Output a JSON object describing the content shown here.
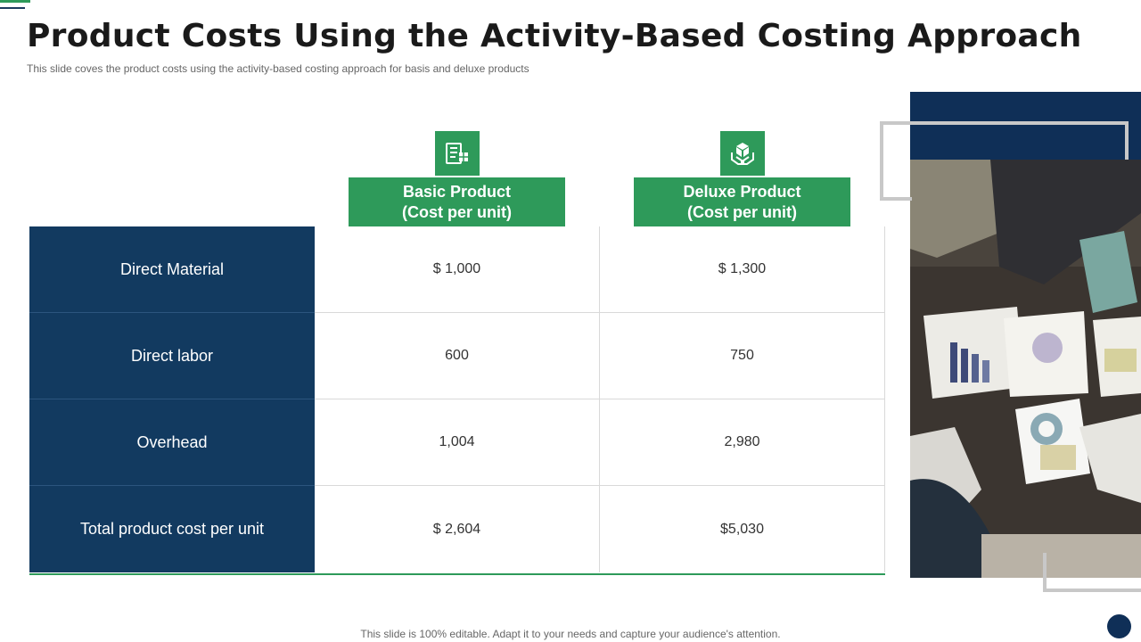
{
  "title": "Product Costs Using the Activity-Based Costing Approach",
  "subtitle": "This slide coves the product costs using the activity-based costing approach for basis and deluxe products",
  "columns": [
    {
      "line1": "Basic Product",
      "line2": "(Cost per unit)",
      "icon": "checklist-box-icon"
    },
    {
      "line1": "Deluxe Product",
      "line2": "(Cost per unit)",
      "icon": "hands-box-icon"
    }
  ],
  "rows": [
    {
      "label": "Direct Material",
      "basic": "$ 1,000",
      "deluxe": "$ 1,300"
    },
    {
      "label": "Direct labor",
      "basic": "600",
      "deluxe": "750"
    },
    {
      "label": "Overhead",
      "basic": "1,004",
      "deluxe": "2,980"
    },
    {
      "label": "Total product cost per unit",
      "basic": "$ 2,604",
      "deluxe": "$5,030"
    }
  ],
  "footer": "This slide is 100% editable. Adapt it to your needs and capture your audience's attention.",
  "colors": {
    "green": "#2e9a5a",
    "navy": "#123a60",
    "dark_navy": "#0f2f57"
  }
}
